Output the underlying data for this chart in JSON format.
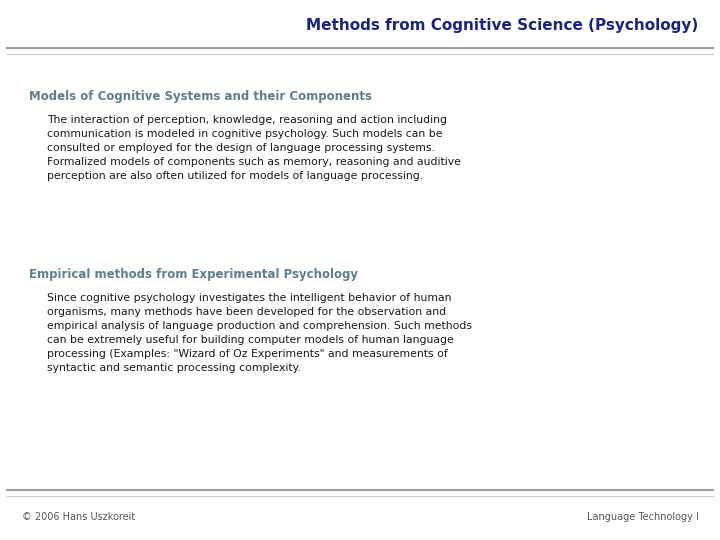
{
  "title": "Methods from Cognitive Science (Psychology)",
  "title_color": "#1a237e",
  "title_fontsize": 11,
  "background_color": "#ffffff",
  "header_line_color_dark": "#9e9e9e",
  "header_line_color_light": "#cccccc",
  "section1_heading": "Models of Cognitive Systems and their Components",
  "section1_text": "The interaction of perception, knowledge, reasoning and action including\ncommunication is modeled in cognitive psychology. Such models can be\nconsulted or employed for the design of language processing systems.\nFormalized models of components such as memory, reasoning and auditive\nperception are also often utilized for models of language processing.",
  "section2_heading": "Empirical methods from Experimental Psychology",
  "section2_text": "Since cognitive psychology investigates the intelligent behavior of human\norganisms, many methods have been developed for the observation and\nempirical analysis of language production and comprehension. Such methods\ncan be extremely useful for building computer models of human language\nprocessing (Examples: \"Wizard of Oz Experiments\" and measurements of\nsyntactic and semantic processing complexity.",
  "footer_left": "© 2006 Hans Uszkoreit",
  "footer_right": "Language Technology I",
  "heading_color": "#607d8b",
  "body_color": "#1a1a1a",
  "footer_color": "#555555",
  "heading_fontsize": 8.5,
  "body_fontsize": 7.8,
  "footer_fontsize": 7.0
}
